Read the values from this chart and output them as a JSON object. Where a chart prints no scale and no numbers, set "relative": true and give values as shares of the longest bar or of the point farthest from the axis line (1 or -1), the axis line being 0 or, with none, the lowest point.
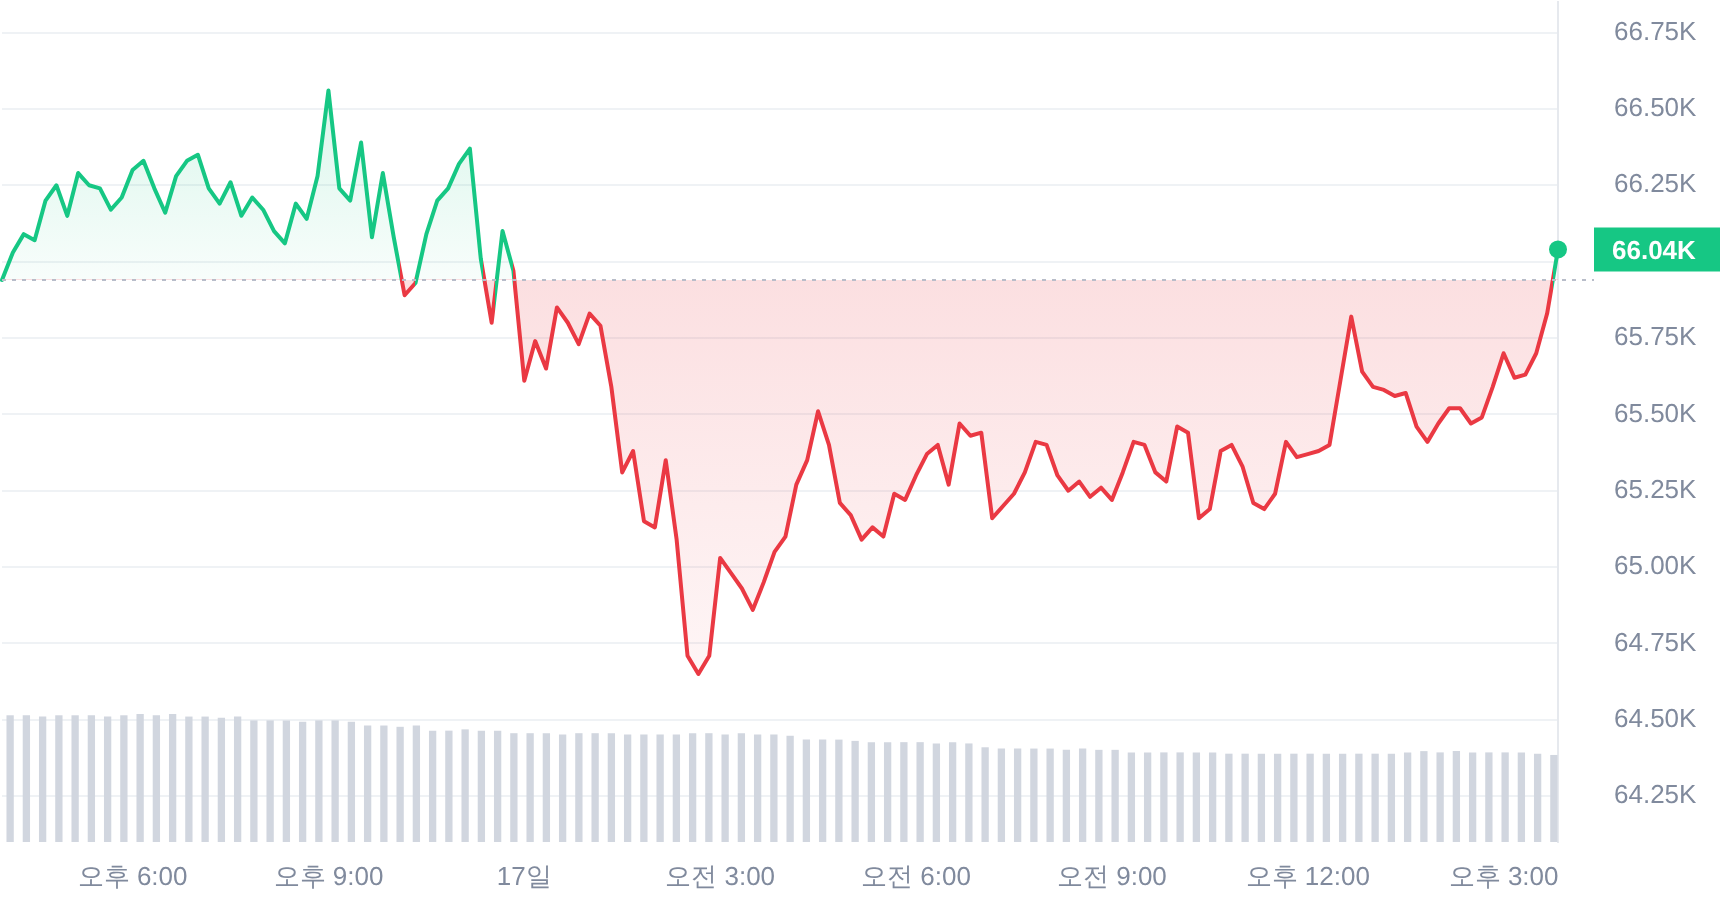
{
  "chart_data": [
    {
      "type": "area",
      "categories": [
        null,
        null,
        null,
        null,
        null,
        null,
        null,
        null,
        null,
        null,
        null,
        null,
        "오후 6:00",
        null,
        null,
        null,
        null,
        null,
        null,
        null,
        null,
        null,
        null,
        null,
        null,
        null,
        null,
        null,
        null,
        null,
        "오후 9:00",
        null,
        null,
        null,
        null,
        null,
        null,
        null,
        null,
        null,
        null,
        null,
        null,
        null,
        null,
        null,
        null,
        null,
        "17일",
        null,
        null,
        null,
        null,
        null,
        null,
        null,
        null,
        null,
        null,
        null,
        null,
        null,
        null,
        null,
        null,
        null,
        "오전 3:00",
        null,
        null,
        null,
        null,
        null,
        null,
        null,
        null,
        null,
        null,
        null,
        null,
        null,
        null,
        null,
        null,
        null,
        "오전 6:00",
        null,
        null,
        null,
        null,
        null,
        null,
        null,
        null,
        null,
        null,
        null,
        null,
        null,
        null,
        null,
        null,
        null,
        "오전 9:00",
        null,
        null,
        null,
        null,
        null,
        null,
        null,
        null,
        null,
        null,
        null,
        null,
        null,
        null,
        null,
        null,
        null,
        "오후 12:00",
        null,
        null,
        null,
        null,
        null,
        null,
        null,
        null,
        null,
        null,
        null,
        null,
        null,
        null,
        null,
        null,
        null,
        "오후 3:00",
        null,
        null,
        null,
        null,
        null
      ],
      "values": [
        65.94,
        66.03,
        66.09,
        66.07,
        66.2,
        66.25,
        66.15,
        66.29,
        66.25,
        66.24,
        66.17,
        66.21,
        66.3,
        66.33,
        66.24,
        66.16,
        66.28,
        66.33,
        66.35,
        66.24,
        66.19,
        66.26,
        66.15,
        66.21,
        66.17,
        66.1,
        66.06,
        66.19,
        66.14,
        66.28,
        66.56,
        66.24,
        66.2,
        66.39,
        66.08,
        66.29,
        66.08,
        65.89,
        65.93,
        66.09,
        66.2,
        66.24,
        66.32,
        66.37,
        66.01,
        65.8,
        66.1,
        65.97,
        65.61,
        65.74,
        65.65,
        65.85,
        65.8,
        65.73,
        65.83,
        65.79,
        65.59,
        65.31,
        65.38,
        65.15,
        65.13,
        65.35,
        65.09,
        64.71,
        64.65,
        64.71,
        65.03,
        64.98,
        64.93,
        64.86,
        64.95,
        65.05,
        65.1,
        65.27,
        65.35,
        65.51,
        65.4,
        65.21,
        65.17,
        65.09,
        65.13,
        65.1,
        65.24,
        65.22,
        65.3,
        65.37,
        65.4,
        65.27,
        65.47,
        65.43,
        65.44,
        65.16,
        65.2,
        65.24,
        65.31,
        65.41,
        65.4,
        65.3,
        65.25,
        65.28,
        65.23,
        65.26,
        65.22,
        65.31,
        65.41,
        65.4,
        65.31,
        65.28,
        65.46,
        65.44,
        65.16,
        65.19,
        65.38,
        65.4,
        65.33,
        65.21,
        65.19,
        65.24,
        65.41,
        65.36,
        65.37,
        65.38,
        65.4,
        65.61,
        65.82,
        65.64,
        65.59,
        65.58,
        65.56,
        65.57,
        65.46,
        65.41,
        65.47,
        65.52,
        65.52,
        65.47,
        65.49,
        65.59,
        65.7,
        65.62,
        65.63,
        65.7,
        65.83,
        66.04
      ],
      "value_labels": [
        null,
        null,
        null,
        null,
        null,
        null,
        null,
        null,
        null,
        null,
        null,
        null,
        null,
        null,
        null,
        null,
        null,
        null,
        null,
        null,
        null,
        null,
        null,
        null,
        null,
        null,
        null,
        null,
        null,
        null,
        null,
        null,
        null,
        null,
        null,
        null,
        null,
        null,
        null,
        null,
        null,
        null,
        null,
        null,
        null,
        null,
        null,
        null,
        null,
        null,
        null,
        null,
        null,
        null,
        null,
        null,
        null,
        null,
        null,
        null,
        null,
        null,
        null,
        null,
        null,
        null,
        null,
        null,
        null,
        null,
        null,
        null,
        null,
        null,
        null,
        null,
        null,
        null,
        null,
        null,
        null,
        null,
        null,
        null,
        null,
        null,
        null,
        null,
        null,
        null,
        null,
        null,
        null,
        null,
        null,
        null,
        null,
        null,
        null,
        null,
        null,
        null,
        null,
        null,
        null,
        null,
        null,
        null,
        null,
        null,
        null,
        null,
        null,
        null,
        null,
        null,
        null,
        null,
        null,
        null,
        null,
        null,
        null,
        null,
        null,
        null,
        null,
        null,
        null,
        null,
        null,
        null,
        null,
        null,
        null,
        null,
        null,
        null,
        null,
        null,
        null,
        null,
        null,
        "66.04K"
      ],
      "colors": [
        "#16c784",
        "#16c784",
        "#16c784",
        "#16c784",
        "#16c784",
        "#16c784",
        "#16c784",
        "#16c784",
        "#16c784",
        "#16c784",
        "#16c784",
        "#16c784",
        "#16c784",
        "#16c784",
        "#16c784",
        "#16c784",
        "#16c784",
        "#16c784",
        "#16c784",
        "#16c784",
        "#16c784",
        "#16c784",
        "#16c784",
        "#16c784",
        "#16c784",
        "#16c784",
        "#16c784",
        "#16c784",
        "#16c784",
        "#16c784",
        "#16c784",
        "#16c784",
        "#16c784",
        "#16c784",
        "#16c784",
        "#16c784",
        "#16c784",
        "#ea3943",
        "#ea3943",
        "#16c784",
        "#16c784",
        "#16c784",
        "#16c784",
        "#16c784",
        "#16c784",
        "#ea3943",
        "#16c784",
        "#16c784",
        "#ea3943",
        "#ea3943",
        "#ea3943",
        "#ea3943",
        "#ea3943",
        "#ea3943",
        "#ea3943",
        "#ea3943",
        "#ea3943",
        "#ea3943",
        "#ea3943",
        "#ea3943",
        "#ea3943",
        "#ea3943",
        "#ea3943",
        "#ea3943",
        "#ea3943",
        "#ea3943",
        "#ea3943",
        "#ea3943",
        "#ea3943",
        "#ea3943",
        "#ea3943",
        "#ea3943",
        "#ea3943",
        "#ea3943",
        "#ea3943",
        "#ea3943",
        "#ea3943",
        "#ea3943",
        "#ea3943",
        "#ea3943",
        "#ea3943",
        "#ea3943",
        "#ea3943",
        "#ea3943",
        "#ea3943",
        "#ea3943",
        "#ea3943",
        "#ea3943",
        "#ea3943",
        "#ea3943",
        "#ea3943",
        "#ea3943",
        "#ea3943",
        "#ea3943",
        "#ea3943",
        "#ea3943",
        "#ea3943",
        "#ea3943",
        "#ea3943",
        "#ea3943",
        "#ea3943",
        "#ea3943",
        "#ea3943",
        "#ea3943",
        "#ea3943",
        "#ea3943",
        "#ea3943",
        "#ea3943",
        "#ea3943",
        "#ea3943",
        "#ea3943",
        "#ea3943",
        "#ea3943",
        "#ea3943",
        "#ea3943",
        "#ea3943",
        "#ea3943",
        "#ea3943",
        "#ea3943",
        "#ea3943",
        "#ea3943",
        "#ea3943",
        "#ea3943",
        "#ea3943",
        "#ea3943",
        "#ea3943",
        "#ea3943",
        "#ea3943",
        "#ea3943",
        "#ea3943",
        "#ea3943",
        "#ea3943",
        "#ea3943",
        "#ea3943",
        "#ea3943",
        "#ea3943",
        "#ea3943",
        "#ea3943",
        "#ea3943",
        "#ea3943",
        "#ea3943",
        "#ea3943",
        "#ea3943",
        "#16c784"
      ],
      "ylim": [
        64.1,
        66.85
      ],
      "yticks": [
        {
          "value": 64.25,
          "label": "64.25K"
        },
        {
          "value": 64.5,
          "label": "64.50K"
        },
        {
          "value": 64.75,
          "label": "64.75K"
        },
        {
          "value": 65,
          "label": "65.00K"
        },
        {
          "value": 65.25,
          "label": "65.25K"
        },
        {
          "value": 65.5,
          "label": "65.50K"
        },
        {
          "value": 65.75,
          "label": "65.75K"
        },
        {
          "value": 66,
          "label": null
        },
        {
          "value": 66.25,
          "label": "66.25K"
        },
        {
          "value": 66.5,
          "label": "66.50K"
        },
        {
          "value": 66.75,
          "label": "66.75K"
        }
      ],
      "ref_lines": [
        {
          "axis": "y",
          "value": 65.94,
          "color": "#b8bdc9",
          "line_style": "dotted"
        }
      ],
      "grid": "y",
      "legend": false,
      "marker": "none"
    },
    {
      "type": "bar",
      "relative": true,
      "categories": [
        null,
        null,
        null,
        null,
        null,
        null,
        null,
        null,
        null,
        null,
        null,
        null,
        null,
        null,
        null,
        null,
        null,
        null,
        null,
        null,
        null,
        null,
        null,
        null,
        null,
        null,
        null,
        null,
        null,
        null,
        null,
        null,
        null,
        null,
        null,
        null,
        null,
        null,
        null,
        null,
        null,
        null,
        null,
        null,
        null,
        null,
        null,
        null,
        null,
        null,
        null,
        null,
        null,
        null,
        null,
        null,
        null,
        null,
        null,
        null,
        null,
        null,
        null,
        null,
        null,
        null,
        null,
        null,
        null,
        null,
        null,
        null,
        null,
        null,
        null,
        null,
        null,
        null,
        null,
        null,
        null,
        null,
        null,
        null,
        null,
        null,
        null,
        null,
        null,
        null,
        null,
        null,
        null,
        null,
        null,
        null
      ],
      "values": [
        0.99,
        0.99,
        0.98,
        0.99,
        0.99,
        0.99,
        0.98,
        0.99,
        1,
        0.99,
        1,
        0.98,
        0.98,
        0.97,
        0.98,
        0.95,
        0.95,
        0.95,
        0.94,
        0.95,
        0.95,
        0.94,
        0.91,
        0.91,
        0.9,
        0.91,
        0.87,
        0.87,
        0.88,
        0.87,
        0.87,
        0.85,
        0.85,
        0.85,
        0.84,
        0.85,
        0.85,
        0.85,
        0.84,
        0.84,
        0.84,
        0.84,
        0.85,
        0.85,
        0.84,
        0.85,
        0.84,
        0.84,
        0.83,
        0.8,
        0.8,
        0.8,
        0.79,
        0.78,
        0.78,
        0.78,
        0.78,
        0.77,
        0.78,
        0.77,
        0.74,
        0.73,
        0.73,
        0.73,
        0.73,
        0.72,
        0.73,
        0.72,
        0.72,
        0.7,
        0.7,
        0.7,
        0.7,
        0.7,
        0.7,
        0.69,
        0.69,
        0.69,
        0.69,
        0.69,
        0.69,
        0.69,
        0.69,
        0.69,
        0.69,
        0.69,
        0.7,
        0.71,
        0.7,
        0.71,
        0.7,
        0.7,
        0.7,
        0.7,
        0.69,
        0.68
      ],
      "color": "#d1d6df"
    }
  ]
}
